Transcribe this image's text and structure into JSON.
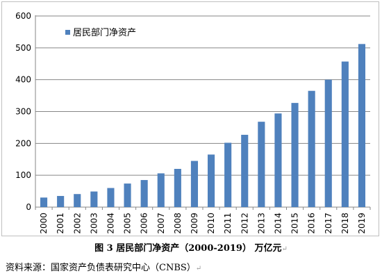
{
  "chart_data": {
    "type": "bar",
    "categories": [
      "2000",
      "2001",
      "2002",
      "2003",
      "2004",
      "2005",
      "2006",
      "2007",
      "2008",
      "2009",
      "2010",
      "2011",
      "2012",
      "2013",
      "2014",
      "2015",
      "2016",
      "2017",
      "2018",
      "2019"
    ],
    "series": [
      {
        "name": "居民部门净资产",
        "color": "#4f81bd",
        "values": [
          30,
          35,
          41,
          49,
          60,
          74,
          85,
          106,
          120,
          145,
          165,
          202,
          227,
          268,
          294,
          327,
          365,
          400,
          457,
          512
        ]
      }
    ],
    "ylim": [
      0,
      600
    ],
    "yticks": [
      0,
      100,
      200,
      300,
      400,
      500,
      600
    ],
    "grid": true,
    "legend_position": "top-left",
    "title": "",
    "xlabel": "",
    "ylabel": ""
  },
  "caption": "图 3 居民部门净资产（2000-2019） 万亿元",
  "source": "资料来源：国家资产负债表研究中心（CNBS）",
  "paragraph_mark": "↵"
}
